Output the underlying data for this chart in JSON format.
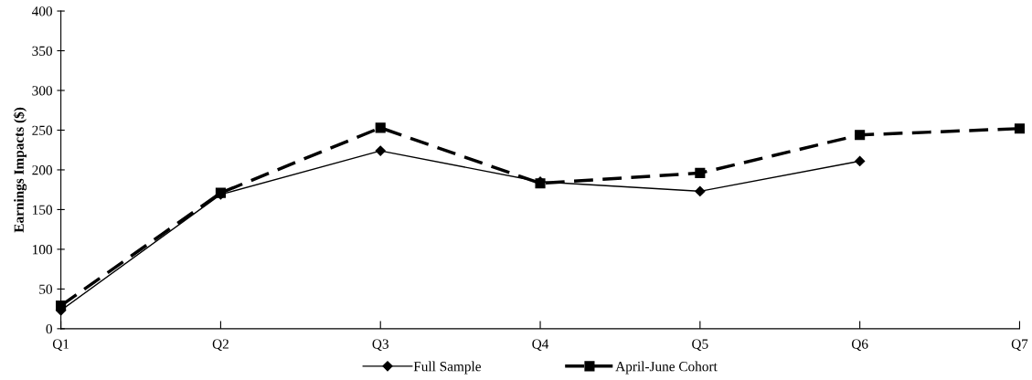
{
  "chart_data": {
    "type": "line",
    "ylabel": "Earnings Impacts ($)",
    "categories": [
      "Q1",
      "Q2",
      "Q3",
      "Q4",
      "Q5",
      "Q6",
      "Q7"
    ],
    "ylim": [
      0,
      400
    ],
    "yticks": [
      0,
      50,
      100,
      150,
      200,
      250,
      300,
      350,
      400
    ],
    "grid": false,
    "legend": "bottom",
    "series": [
      {
        "name": "Full Sample",
        "color": "#000000",
        "marker": "diamond",
        "line_style": "solid",
        "values": [
          23,
          169,
          224,
          185,
          173,
          211,
          null
        ]
      },
      {
        "name": "April-June Cohort",
        "color": "#000000",
        "marker": "square",
        "line_style": "dashed",
        "values": [
          29,
          171,
          253,
          183,
          196,
          244,
          252
        ]
      }
    ]
  }
}
